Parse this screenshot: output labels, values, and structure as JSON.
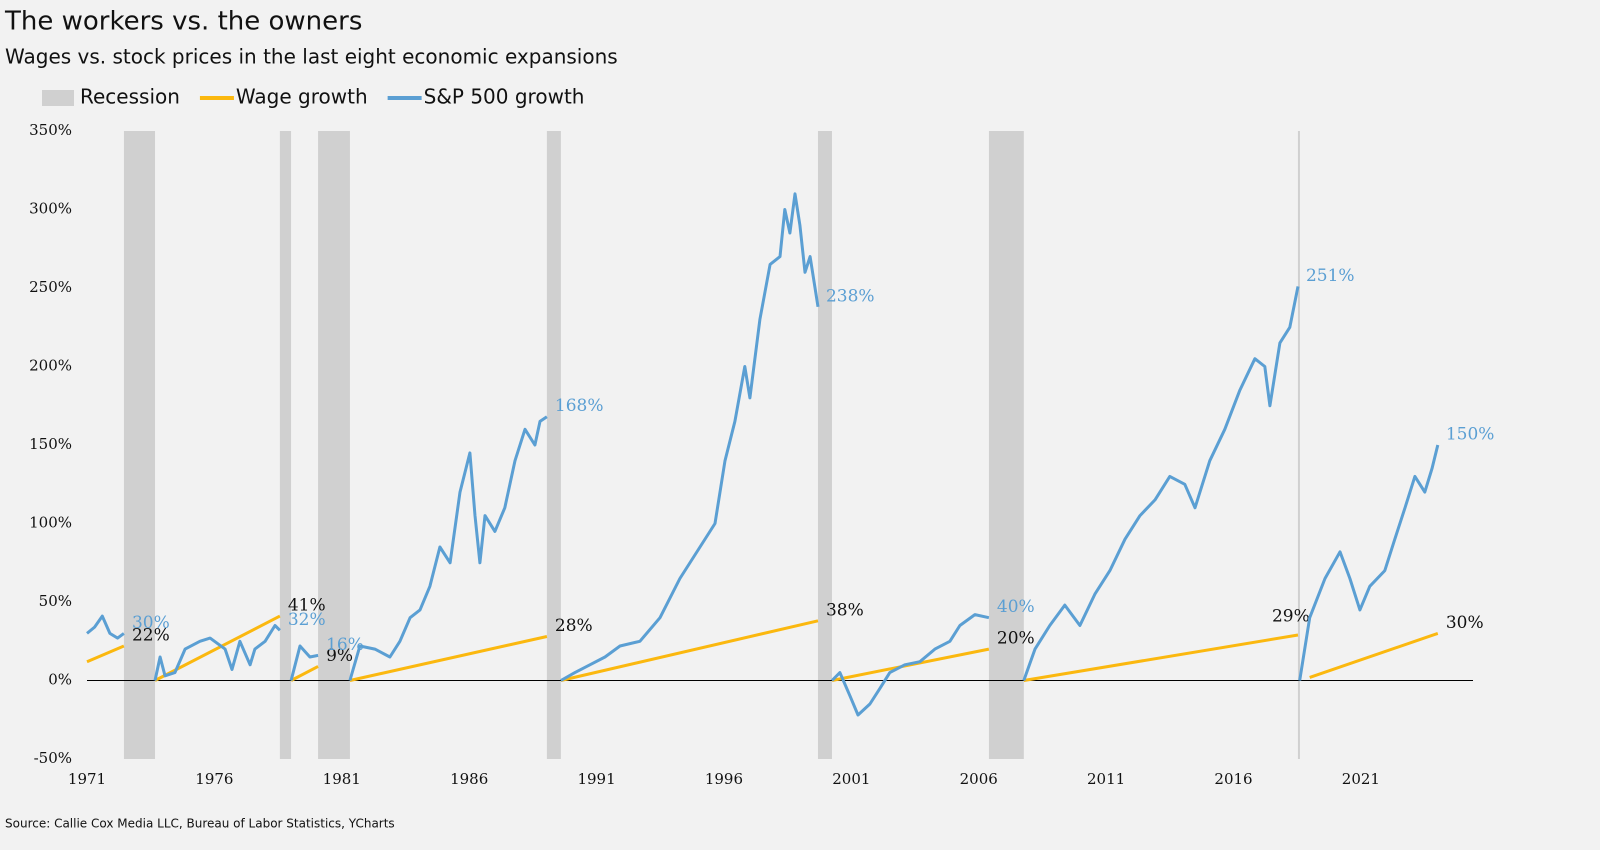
{
  "chart_data": {
    "type": "line",
    "title": "The workers vs. the owners",
    "subtitle": "Wages vs. stock prices in the last eight economic expansions",
    "source": "Source: Callie Cox Media LLC, Bureau of Labor Statistics, YCharts",
    "xlim": [
      1971,
      2025.4
    ],
    "xticks": [
      1971,
      1976,
      1981,
      1986,
      1991,
      1996,
      2001,
      2006,
      2011,
      2016,
      2021
    ],
    "ylim": [
      -50,
      350
    ],
    "yticks": [
      {
        "value": -50,
        "label": "-50%"
      },
      {
        "value": 0,
        "label": "0%"
      },
      {
        "value": 50,
        "label": "50%"
      },
      {
        "value": 100,
        "label": "100%"
      },
      {
        "value": 150,
        "label": "150%"
      },
      {
        "value": 200,
        "label": "200%"
      },
      {
        "value": 250,
        "label": "250%"
      },
      {
        "value": 300,
        "label": "300%"
      },
      {
        "value": 350,
        "label": "350%"
      }
    ],
    "grid": false,
    "recessions": {
      "name": "Recession",
      "color": "#d0d0d0",
      "spans": [
        [
          1972.45,
          1973.67
        ],
        [
          1978.57,
          1979.01
        ],
        [
          1980.07,
          1981.32
        ],
        [
          1989.05,
          1989.6
        ],
        [
          1999.69,
          2000.24
        ],
        [
          2006.4,
          2007.77
        ],
        [
          2018.53,
          2018.6
        ]
      ]
    },
    "series": [
      {
        "name": "Wage growth",
        "color": "#fbb80f",
        "x": [
          1971,
          1972.45,
          null,
          1973.67,
          1978.57,
          null,
          1979.01,
          1980.07,
          null,
          1981.32,
          1989.05,
          null,
          1989.6,
          1999.69,
          null,
          2000.24,
          2006.4,
          null,
          2007.77,
          2018.53,
          null,
          2018.99,
          2024.02
        ],
        "values": [
          12,
          22,
          null,
          0,
          41,
          null,
          0,
          9,
          null,
          0,
          28,
          null,
          0,
          38,
          null,
          0,
          20,
          null,
          0,
          29,
          null,
          2,
          30
        ],
        "value_labels": [
          null,
          "22%",
          null,
          null,
          "41%",
          null,
          null,
          "9%",
          null,
          null,
          "28%",
          null,
          null,
          "38%",
          null,
          null,
          "20%",
          null,
          null,
          "29%",
          null,
          null,
          "30%"
        ]
      },
      {
        "name": "S&P 500 growth",
        "color": "#5b9fd3",
        "x": [
          1971,
          1971.3,
          1971.6,
          1971.9,
          1972.2,
          1972.45,
          null,
          1973.67,
          1973.87,
          1974.06,
          1974.45,
          1974.85,
          1975.43,
          1975.83,
          1976.42,
          1976.69,
          1977.0,
          1977.4,
          1977.59,
          1977.99,
          1978.38,
          1978.57,
          null,
          1979.01,
          1979.36,
          1979.75,
          1980.07,
          null,
          1981.32,
          1981.71,
          1982.3,
          1982.89,
          1983.28,
          1983.68,
          1984.07,
          1984.46,
          1984.85,
          1985.25,
          1985.64,
          1986.03,
          1986.23,
          1986.42,
          1986.62,
          1987.01,
          1987.4,
          1987.8,
          1988.19,
          1988.58,
          1988.78,
          1989.05,
          null,
          1989.6,
          1990.15,
          1990.74,
          1991.33,
          1991.92,
          1992.7,
          1993.49,
          1994.27,
          1995.06,
          1995.65,
          1996.04,
          1996.43,
          1996.82,
          1997.02,
          1997.41,
          1997.81,
          1998.2,
          1998.39,
          1998.59,
          1998.79,
          1998.98,
          1999.18,
          1999.38,
          1999.69,
          null,
          2000.24,
          2000.55,
          2000.95,
          2001.26,
          2001.73,
          2002.12,
          2002.51,
          2003.1,
          2003.69,
          2004.28,
          2004.87,
          2005.26,
          2005.85,
          2006.4,
          null,
          2007.77,
          2008.21,
          2008.79,
          2009.38,
          2009.97,
          2010.56,
          2011.15,
          2011.74,
          2012.33,
          2012.92,
          2013.5,
          2014.09,
          2014.49,
          2015.07,
          2015.66,
          2016.25,
          2016.84,
          2017.23,
          2017.43,
          2017.82,
          2018.21,
          2018.53,
          null,
          2018.6,
          2018.99,
          2019.59,
          2020.18,
          2020.57,
          2020.96,
          2021.35,
          2021.94,
          2022.33,
          2022.73,
          2023.12,
          2023.51,
          2023.79,
          2024.02
        ],
        "values": [
          30,
          34,
          41,
          30,
          27,
          30,
          null,
          0,
          15,
          3,
          5,
          20,
          25,
          27,
          20,
          7,
          25,
          10,
          20,
          25,
          35,
          32,
          null,
          0,
          22,
          15,
          16,
          null,
          0,
          22,
          20,
          15,
          25,
          40,
          45,
          60,
          85,
          75,
          120,
          145,
          105,
          75,
          105,
          95,
          110,
          140,
          160,
          150,
          165,
          168,
          null,
          0,
          5,
          10,
          15,
          22,
          25,
          40,
          65,
          85,
          100,
          140,
          165,
          200,
          180,
          230,
          265,
          270,
          300,
          285,
          310,
          290,
          260,
          270,
          238,
          null,
          0,
          5,
          -10,
          -22,
          -15,
          -5,
          5,
          10,
          12,
          20,
          25,
          35,
          42,
          40,
          null,
          0,
          20,
          35,
          48,
          35,
          55,
          70,
          90,
          105,
          115,
          130,
          125,
          110,
          140,
          160,
          185,
          205,
          200,
          175,
          215,
          225,
          251,
          null,
          0,
          40,
          65,
          82,
          65,
          45,
          60,
          70,
          90,
          110,
          130,
          120,
          135,
          150
        ],
        "value_labels": [
          null,
          null,
          null,
          null,
          null,
          "30%",
          null,
          null,
          null,
          null,
          null,
          null,
          null,
          null,
          null,
          null,
          null,
          null,
          null,
          null,
          null,
          "32%",
          null,
          null,
          null,
          null,
          "16%",
          null,
          null,
          null,
          null,
          null,
          null,
          null,
          null,
          null,
          null,
          null,
          null,
          null,
          null,
          null,
          null,
          null,
          null,
          null,
          null,
          null,
          null,
          "168%",
          null,
          null,
          null,
          null,
          null,
          null,
          null,
          null,
          null,
          null,
          null,
          null,
          null,
          null,
          null,
          null,
          null,
          null,
          null,
          null,
          null,
          null,
          null,
          null,
          "238%",
          null,
          null,
          null,
          null,
          null,
          null,
          null,
          null,
          null,
          null,
          null,
          null,
          null,
          null,
          "40%",
          null,
          null,
          null,
          null,
          null,
          null,
          null,
          null,
          null,
          null,
          null,
          null,
          null,
          null,
          null,
          null,
          null,
          null,
          null,
          null,
          null,
          null,
          "251%",
          null,
          null,
          null,
          null,
          null,
          null,
          null,
          null,
          null,
          null,
          null,
          null,
          null,
          null,
          "150%"
        ]
      }
    ]
  }
}
